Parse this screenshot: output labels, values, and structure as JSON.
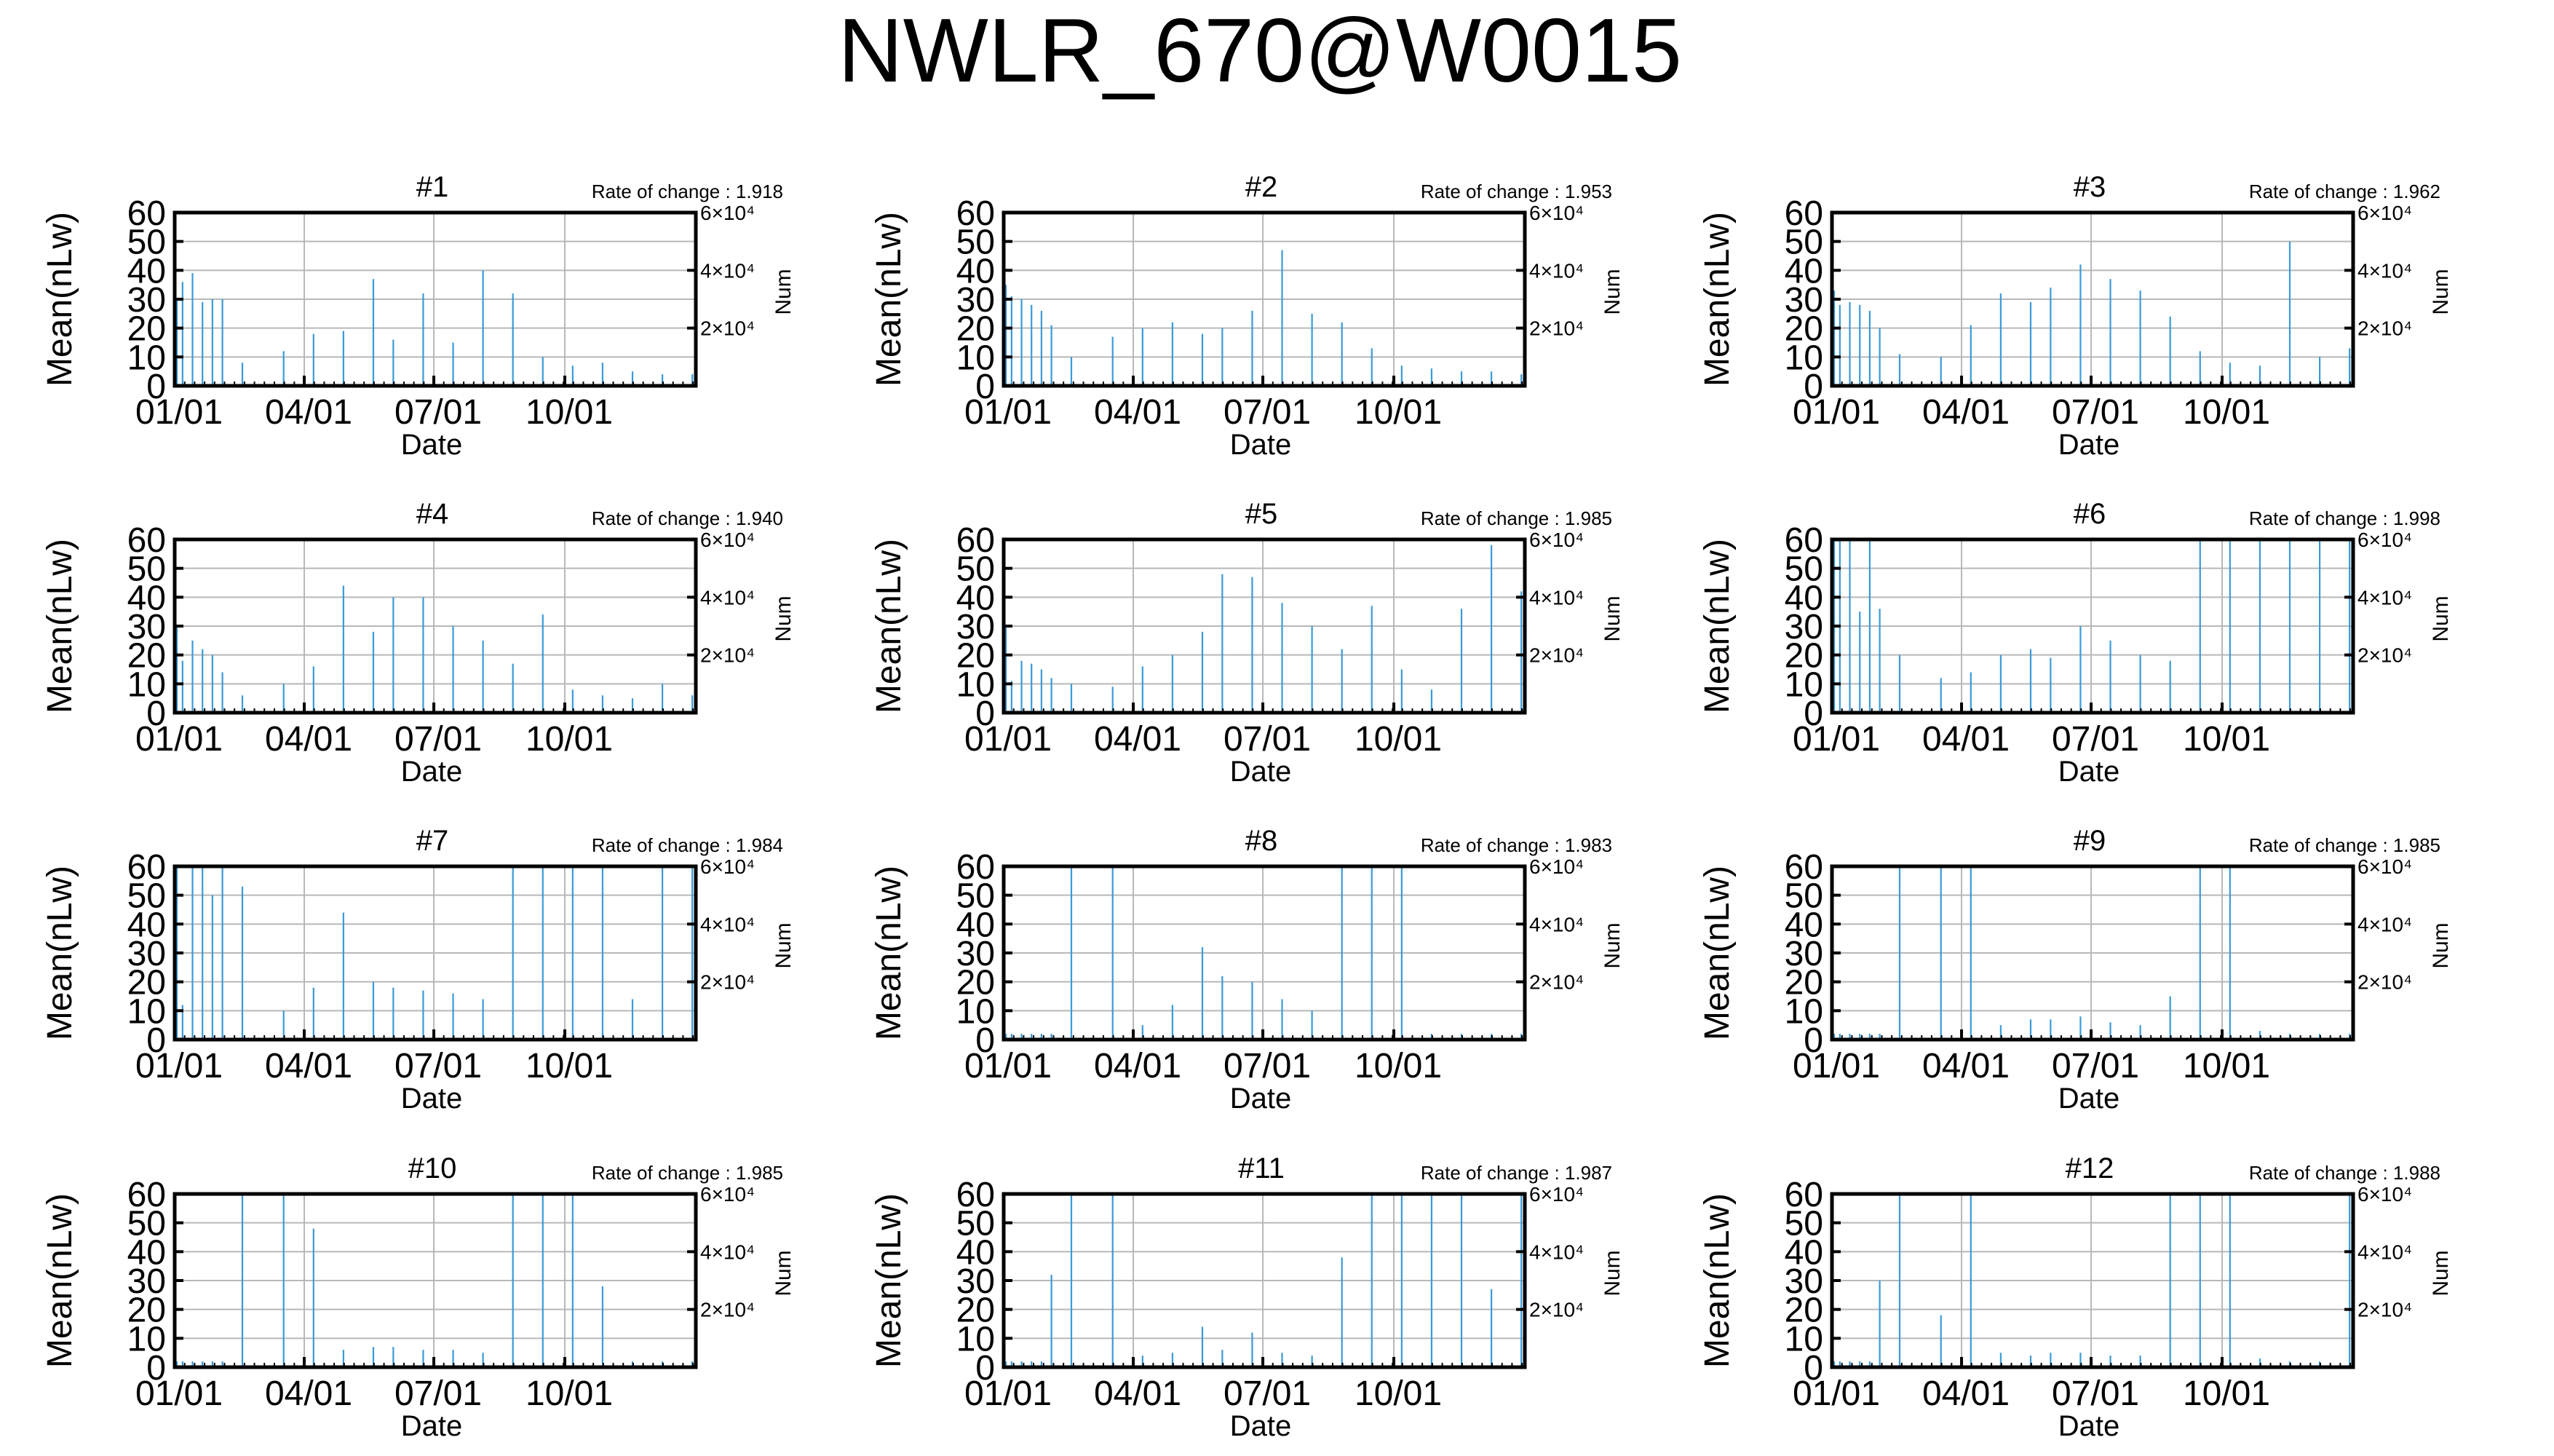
{
  "figure_title": "NWLR_670@W0015",
  "colors": {
    "bar": "#3a9ad8",
    "grid": "#b8b8b8",
    "axis": "#000000"
  },
  "chart_data": [
    {
      "type": "bar",
      "title": "#1",
      "rate_of_change": "Rate of change : 1.918",
      "xlabel": "Date",
      "ylabel": "Mean(nLw)",
      "y2label": "Num",
      "xticks": [
        "01/01",
        "04/01",
        "07/01",
        "10/01"
      ],
      "yticks": [
        "0",
        "10",
        "20",
        "30",
        "40",
        "50",
        "60"
      ],
      "y2ticks": [
        "2×10⁴",
        "4×10⁴",
        "6×10⁴"
      ],
      "ylim": [
        0,
        60
      ],
      "y2lim": [
        0,
        60000
      ],
      "x": [
        "01-01",
        "01-05",
        "01-12",
        "01-19",
        "01-26",
        "02-02",
        "02-16",
        "03-16",
        "04-06",
        "04-27",
        "05-18",
        "06-01",
        "06-22",
        "07-13",
        "08-03",
        "08-24",
        "09-14",
        "10-05",
        "10-26",
        "11-16",
        "12-07",
        "12-28"
      ],
      "values": [
        30,
        36,
        39,
        29,
        30,
        30,
        8,
        12,
        18,
        19,
        37,
        16,
        32,
        15,
        40,
        32,
        10,
        7,
        8,
        5,
        4,
        4
      ]
    },
    {
      "type": "bar",
      "title": "#2",
      "rate_of_change": "Rate of change : 1.953",
      "xlabel": "Date",
      "ylabel": "Mean(nLw)",
      "y2label": "Num",
      "xticks": [
        "01/01",
        "04/01",
        "07/01",
        "10/01"
      ],
      "yticks": [
        "0",
        "10",
        "20",
        "30",
        "40",
        "50",
        "60"
      ],
      "y2ticks": [
        "2×10⁴",
        "4×10⁴",
        "6×10⁴"
      ],
      "ylim": [
        0,
        60
      ],
      "y2lim": [
        0,
        60000
      ],
      "x": [
        "01-01",
        "01-05",
        "01-12",
        "01-19",
        "01-26",
        "02-02",
        "02-16",
        "03-16",
        "04-06",
        "04-27",
        "05-18",
        "06-01",
        "06-22",
        "07-13",
        "08-03",
        "08-24",
        "09-14",
        "10-05",
        "10-26",
        "11-16",
        "12-07",
        "12-28"
      ],
      "values": [
        35,
        31,
        30,
        28,
        26,
        21,
        10,
        17,
        20,
        22,
        18,
        20,
        26,
        47,
        25,
        22,
        13,
        7,
        6,
        5,
        5,
        4
      ]
    },
    {
      "type": "bar",
      "title": "#3",
      "rate_of_change": "Rate of change : 1.962",
      "xlabel": "Date",
      "ylabel": "Mean(nLw)",
      "y2label": "Num",
      "xticks": [
        "01/01",
        "04/01",
        "07/01",
        "10/01"
      ],
      "yticks": [
        "0",
        "10",
        "20",
        "30",
        "40",
        "50",
        "60"
      ],
      "y2ticks": [
        "2×10⁴",
        "4×10⁴",
        "6×10⁴"
      ],
      "ylim": [
        0,
        60
      ],
      "y2lim": [
        0,
        60000
      ],
      "x": [
        "01-01",
        "01-05",
        "01-12",
        "01-19",
        "01-26",
        "02-02",
        "02-16",
        "03-16",
        "04-06",
        "04-27",
        "05-18",
        "06-01",
        "06-22",
        "07-13",
        "08-03",
        "08-24",
        "09-14",
        "10-05",
        "10-26",
        "11-16",
        "12-07",
        "12-28"
      ],
      "values": [
        33,
        28,
        29,
        28,
        26,
        20,
        11,
        10,
        21,
        32,
        29,
        34,
        42,
        37,
        33,
        24,
        12,
        8,
        7,
        50,
        10,
        13
      ]
    },
    {
      "type": "bar",
      "title": "#4",
      "rate_of_change": "Rate of change : 1.940",
      "xlabel": "Date",
      "ylabel": "Mean(nLw)",
      "y2label": "Num",
      "xticks": [
        "01/01",
        "04/01",
        "07/01",
        "10/01"
      ],
      "yticks": [
        "0",
        "10",
        "20",
        "30",
        "40",
        "50",
        "60"
      ],
      "y2ticks": [
        "2×10⁴",
        "4×10⁴",
        "6×10⁴"
      ],
      "ylim": [
        0,
        60
      ],
      "y2lim": [
        0,
        60000
      ],
      "x": [
        "01-01",
        "01-05",
        "01-12",
        "01-19",
        "01-26",
        "02-02",
        "02-16",
        "03-16",
        "04-06",
        "04-27",
        "05-18",
        "06-01",
        "06-22",
        "07-13",
        "08-03",
        "08-24",
        "09-14",
        "10-05",
        "10-26",
        "11-16",
        "12-07",
        "12-28"
      ],
      "values": [
        30,
        18,
        25,
        22,
        20,
        14,
        6,
        10,
        16,
        44,
        28,
        40,
        40,
        30,
        25,
        17,
        34,
        8,
        6,
        5,
        10,
        6
      ]
    },
    {
      "type": "bar",
      "title": "#5",
      "rate_of_change": "Rate of change : 1.985",
      "xlabel": "Date",
      "ylabel": "Mean(nLw)",
      "y2label": "Num",
      "xticks": [
        "01/01",
        "04/01",
        "07/01",
        "10/01"
      ],
      "yticks": [
        "0",
        "10",
        "20",
        "30",
        "40",
        "50",
        "60"
      ],
      "y2ticks": [
        "2×10⁴",
        "4×10⁴",
        "6×10⁴"
      ],
      "ylim": [
        0,
        60
      ],
      "y2lim": [
        0,
        60000
      ],
      "x": [
        "01-01",
        "01-05",
        "01-12",
        "01-19",
        "01-26",
        "02-02",
        "02-16",
        "03-16",
        "04-06",
        "04-27",
        "05-18",
        "06-01",
        "06-22",
        "07-13",
        "08-03",
        "08-24",
        "09-14",
        "10-05",
        "10-26",
        "11-16",
        "12-07",
        "12-28"
      ],
      "values": [
        30,
        11,
        18,
        17,
        15,
        12,
        10,
        9,
        16,
        20,
        28,
        48,
        47,
        38,
        30,
        22,
        37,
        15,
        8,
        36,
        58,
        42
      ]
    },
    {
      "type": "bar",
      "title": "#6",
      "rate_of_change": "Rate of change : 1.998",
      "xlabel": "Date",
      "ylabel": "Mean(nLw)",
      "y2label": "Num",
      "xticks": [
        "01/01",
        "04/01",
        "07/01",
        "10/01"
      ],
      "yticks": [
        "0",
        "10",
        "20",
        "30",
        "40",
        "50",
        "60"
      ],
      "y2ticks": [
        "2×10⁴",
        "4×10⁴",
        "6×10⁴"
      ],
      "ylim": [
        0,
        60
      ],
      "y2lim": [
        0,
        60000
      ],
      "x": [
        "01-01",
        "01-05",
        "01-12",
        "01-19",
        "01-26",
        "02-02",
        "02-16",
        "03-16",
        "04-06",
        "04-27",
        "05-18",
        "06-01",
        "06-22",
        "07-13",
        "08-03",
        "08-24",
        "09-14",
        "10-05",
        "10-26",
        "11-16",
        "12-07",
        "12-28"
      ],
      "values": [
        60,
        60,
        60,
        35,
        60,
        36,
        20,
        12,
        14,
        20,
        22,
        19,
        30,
        25,
        20,
        18,
        60,
        60,
        60,
        60,
        60,
        60
      ]
    },
    {
      "type": "bar",
      "title": "#7",
      "rate_of_change": "Rate of change : 1.984",
      "xlabel": "Date",
      "ylabel": "Mean(nLw)",
      "y2label": "Num",
      "xticks": [
        "01/01",
        "04/01",
        "07/01",
        "10/01"
      ],
      "yticks": [
        "0",
        "10",
        "20",
        "30",
        "40",
        "50",
        "60"
      ],
      "y2ticks": [
        "2×10⁴",
        "4×10⁴",
        "6×10⁴"
      ],
      "ylim": [
        0,
        60
      ],
      "y2lim": [
        0,
        60000
      ],
      "x": [
        "01-01",
        "01-05",
        "01-12",
        "01-19",
        "01-26",
        "02-02",
        "02-16",
        "03-16",
        "04-06",
        "04-27",
        "05-18",
        "06-01",
        "06-22",
        "07-13",
        "08-03",
        "08-24",
        "09-14",
        "10-05",
        "10-26",
        "11-16",
        "12-07",
        "12-28"
      ],
      "values": [
        60,
        12,
        60,
        60,
        50,
        60,
        53,
        10,
        18,
        44,
        20,
        18,
        17,
        16,
        14,
        60,
        60,
        60,
        60,
        14,
        60,
        60
      ]
    },
    {
      "type": "bar",
      "title": "#8",
      "rate_of_change": "Rate of change : 1.983",
      "xlabel": "Date",
      "ylabel": "Mean(nLw)",
      "y2label": "Num",
      "xticks": [
        "01/01",
        "04/01",
        "07/01",
        "10/01"
      ],
      "yticks": [
        "0",
        "10",
        "20",
        "30",
        "40",
        "50",
        "60"
      ],
      "y2ticks": [
        "2×10⁴",
        "4×10⁴",
        "6×10⁴"
      ],
      "ylim": [
        0,
        60
      ],
      "y2lim": [
        0,
        60000
      ],
      "x": [
        "01-01",
        "01-05",
        "01-12",
        "01-19",
        "01-26",
        "02-02",
        "02-16",
        "03-16",
        "04-06",
        "04-27",
        "05-18",
        "06-01",
        "06-22",
        "07-13",
        "08-03",
        "08-24",
        "09-14",
        "10-05",
        "10-26",
        "11-16",
        "12-07",
        "12-28"
      ],
      "values": [
        2,
        2,
        2,
        2,
        2,
        2,
        60,
        60,
        5,
        12,
        32,
        22,
        20,
        14,
        10,
        60,
        60,
        60,
        2,
        2,
        2,
        2
      ]
    },
    {
      "type": "bar",
      "title": "#9",
      "rate_of_change": "Rate of change : 1.985",
      "xlabel": "Date",
      "ylabel": "Mean(nLw)",
      "y2label": "Num",
      "xticks": [
        "01/01",
        "04/01",
        "07/01",
        "10/01"
      ],
      "yticks": [
        "0",
        "10",
        "20",
        "30",
        "40",
        "50",
        "60"
      ],
      "y2ticks": [
        "2×10⁴",
        "4×10⁴",
        "6×10⁴"
      ],
      "ylim": [
        0,
        60
      ],
      "y2lim": [
        0,
        60000
      ],
      "x": [
        "01-01",
        "01-05",
        "01-12",
        "01-19",
        "01-26",
        "02-02",
        "02-16",
        "03-16",
        "04-06",
        "04-27",
        "05-18",
        "06-01",
        "06-22",
        "07-13",
        "08-03",
        "08-24",
        "09-14",
        "10-05",
        "10-26",
        "11-16",
        "12-07",
        "12-28"
      ],
      "values": [
        2,
        2,
        2,
        2,
        2,
        2,
        60,
        60,
        60,
        5,
        7,
        7,
        8,
        6,
        5,
        15,
        60,
        60,
        3,
        2,
        2,
        2
      ]
    },
    {
      "type": "bar",
      "title": "#10",
      "rate_of_change": "Rate of change : 1.985",
      "xlabel": "Date",
      "ylabel": "Mean(nLw)",
      "y2label": "Num",
      "xticks": [
        "01/01",
        "04/01",
        "07/01",
        "10/01"
      ],
      "yticks": [
        "0",
        "10",
        "20",
        "30",
        "40",
        "50",
        "60"
      ],
      "y2ticks": [
        "2×10⁴",
        "4×10⁴",
        "6×10⁴"
      ],
      "ylim": [
        0,
        60
      ],
      "y2lim": [
        0,
        60000
      ],
      "x": [
        "01-01",
        "01-05",
        "01-12",
        "01-19",
        "01-26",
        "02-02",
        "02-16",
        "03-16",
        "04-06",
        "04-27",
        "05-18",
        "06-01",
        "06-22",
        "07-13",
        "08-03",
        "08-24",
        "09-14",
        "10-05",
        "10-26",
        "11-16",
        "12-07",
        "12-28"
      ],
      "values": [
        2,
        2,
        2,
        2,
        2,
        2,
        60,
        60,
        48,
        6,
        7,
        7,
        6,
        6,
        5,
        60,
        60,
        60,
        28,
        2,
        2,
        2
      ]
    },
    {
      "type": "bar",
      "title": "#11",
      "rate_of_change": "Rate of change : 1.987",
      "xlabel": "Date",
      "ylabel": "Mean(nLw)",
      "y2label": "Num",
      "xticks": [
        "01/01",
        "04/01",
        "07/01",
        "10/01"
      ],
      "yticks": [
        "0",
        "10",
        "20",
        "30",
        "40",
        "50",
        "60"
      ],
      "y2ticks": [
        "2×10⁴",
        "4×10⁴",
        "6×10⁴"
      ],
      "ylim": [
        0,
        60
      ],
      "y2lim": [
        0,
        60000
      ],
      "x": [
        "01-01",
        "01-05",
        "01-12",
        "01-19",
        "01-26",
        "02-02",
        "02-16",
        "03-16",
        "04-06",
        "04-27",
        "05-18",
        "06-01",
        "06-22",
        "07-13",
        "08-03",
        "08-24",
        "09-14",
        "10-05",
        "10-26",
        "11-16",
        "12-07",
        "12-28"
      ],
      "values": [
        2,
        2,
        2,
        2,
        2,
        32,
        60,
        60,
        4,
        5,
        14,
        6,
        12,
        5,
        4,
        38,
        60,
        60,
        60,
        60,
        27,
        60
      ]
    },
    {
      "type": "bar",
      "title": "#12",
      "rate_of_change": "Rate of change : 1.988",
      "xlabel": "Date",
      "ylabel": "Mean(nLw)",
      "y2label": "Num",
      "xticks": [
        "01/01",
        "04/01",
        "07/01",
        "10/01"
      ],
      "yticks": [
        "0",
        "10",
        "20",
        "30",
        "40",
        "50",
        "60"
      ],
      "y2ticks": [
        "2×10⁴",
        "4×10⁴",
        "6×10⁴"
      ],
      "ylim": [
        0,
        60
      ],
      "y2lim": [
        0,
        60000
      ],
      "x": [
        "01-01",
        "01-05",
        "01-12",
        "01-19",
        "01-26",
        "02-02",
        "02-16",
        "03-16",
        "04-06",
        "04-27",
        "05-18",
        "06-01",
        "06-22",
        "07-13",
        "08-03",
        "08-24",
        "09-14",
        "10-05",
        "10-26",
        "11-16",
        "12-07",
        "12-28"
      ],
      "values": [
        2,
        2,
        2,
        2,
        2,
        30,
        60,
        18,
        60,
        5,
        4,
        5,
        5,
        4,
        4,
        60,
        60,
        60,
        3,
        2,
        2,
        60
      ]
    }
  ]
}
